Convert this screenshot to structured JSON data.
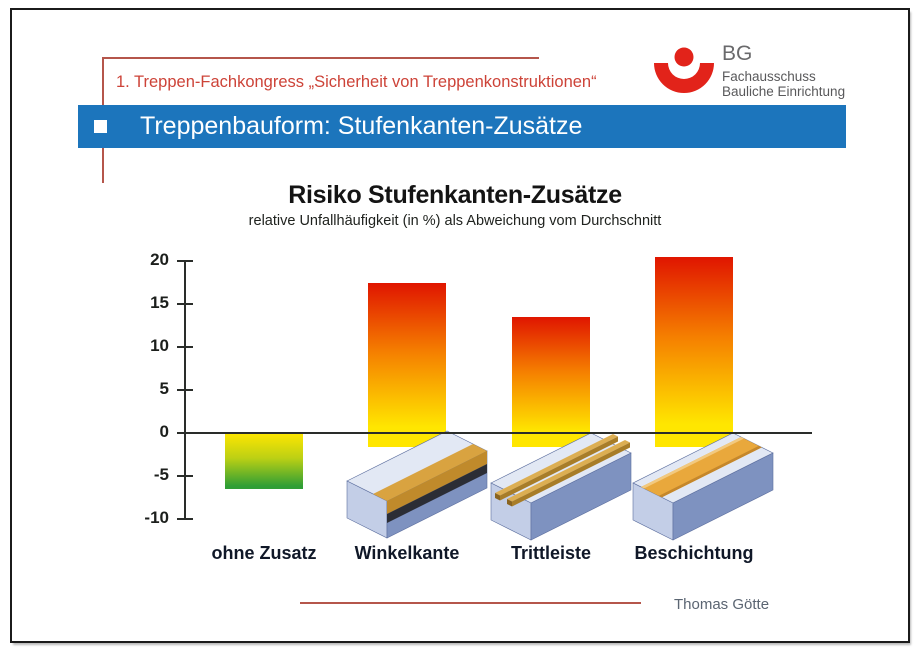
{
  "header": {
    "congress_line": "1. Treppen-Fachkongress „Sicherheit von Treppenkonstruktionen“",
    "title": "Treppenbauform: Stufenkanten-Zusätze",
    "logo": {
      "brand": "BG",
      "line1": "Fachausschuss",
      "line2": "Bauliche Einrichtung"
    }
  },
  "footer": {
    "author": "Thomas Götte"
  },
  "colors": {
    "accent_blue": "#1c75bc",
    "red_text": "#cd4338",
    "red_line": "#b5564b",
    "logo_red": "#e2231a",
    "bar_gradient_top": "#e01500",
    "bar_gradient_mid": "#f57f00",
    "bar_gradient_bottom": "#ffe600",
    "bar_negative_bottom": "#2f9e35",
    "block_top": "#e2e8f4",
    "block_end": "#c3cee7",
    "block_side": "#7e92c0",
    "block_tan": "#d9a340"
  },
  "chart_data": {
    "type": "bar",
    "title": "Risiko Stufenkanten-Zusätze",
    "subtitle": "relative Unfallhäufigkeit (in %) als Abweichung vom Durchschnitt",
    "categories": [
      "ohne Zusatz",
      "Winkelkante",
      "Trittleiste",
      "Beschichtung"
    ],
    "values": [
      -6.5,
      17.5,
      13.5,
      20.5
    ],
    "ylim": [
      -10,
      20
    ],
    "yticks": [
      20,
      15,
      10,
      5,
      0,
      -5,
      -10
    ],
    "xlabel": "",
    "ylabel": "",
    "grid": false,
    "legend": "none",
    "illustrations": [
      "none",
      "winkelkante-step-block",
      "trittleiste-step-block",
      "beschichtung-step-block"
    ]
  }
}
